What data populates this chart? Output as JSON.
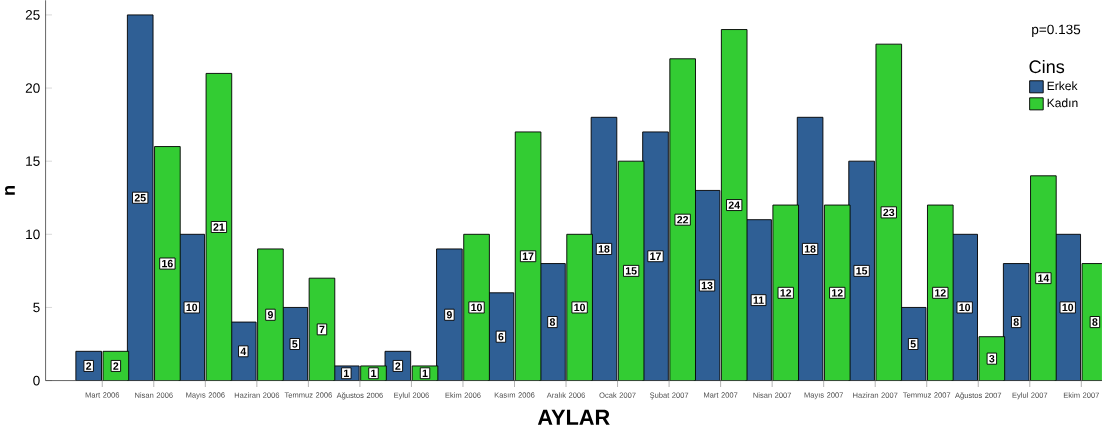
{
  "chart_data": {
    "type": "bar",
    "xlabel": "AYLAR",
    "ylabel": "n",
    "legend_title": "Cins",
    "annotations": [
      "p=0.135"
    ],
    "categories": [
      "Mart 2006",
      "Nisan 2006",
      "Mayıs 2006",
      "Haziran 2006",
      "Temmuz 2006",
      "Ağustos 2006",
      "Eylul 2006",
      "Ekim 2006",
      "Kasım 2006",
      "Aralık 2006",
      "Ocak 2007",
      "Şubat 2007",
      "Mart 2007",
      "Nisan 2007",
      "Mayıs 2007",
      "Haziran 2007",
      "Temmuz 2007",
      "Ağustos 2007",
      "Eylul 2007",
      "Ekim 2007"
    ],
    "series": [
      {
        "name": "Erkek",
        "color": "#2f5f95",
        "values": [
          2,
          25,
          10,
          4,
          5,
          1,
          2,
          9,
          6,
          8,
          18,
          17,
          13,
          11,
          18,
          15,
          5,
          10,
          8,
          10
        ]
      },
      {
        "name": "Kadın",
        "color": "#33cc33",
        "values": [
          2,
          16,
          21,
          9,
          7,
          1,
          1,
          10,
          17,
          10,
          15,
          22,
          24,
          12,
          12,
          23,
          12,
          3,
          14,
          8
        ]
      }
    ],
    "ylim": [
      0,
      26
    ],
    "yticks": [
      0,
      5,
      10,
      15,
      20,
      25
    ],
    "data_labels": true,
    "legend": "top right",
    "grid": false
  }
}
